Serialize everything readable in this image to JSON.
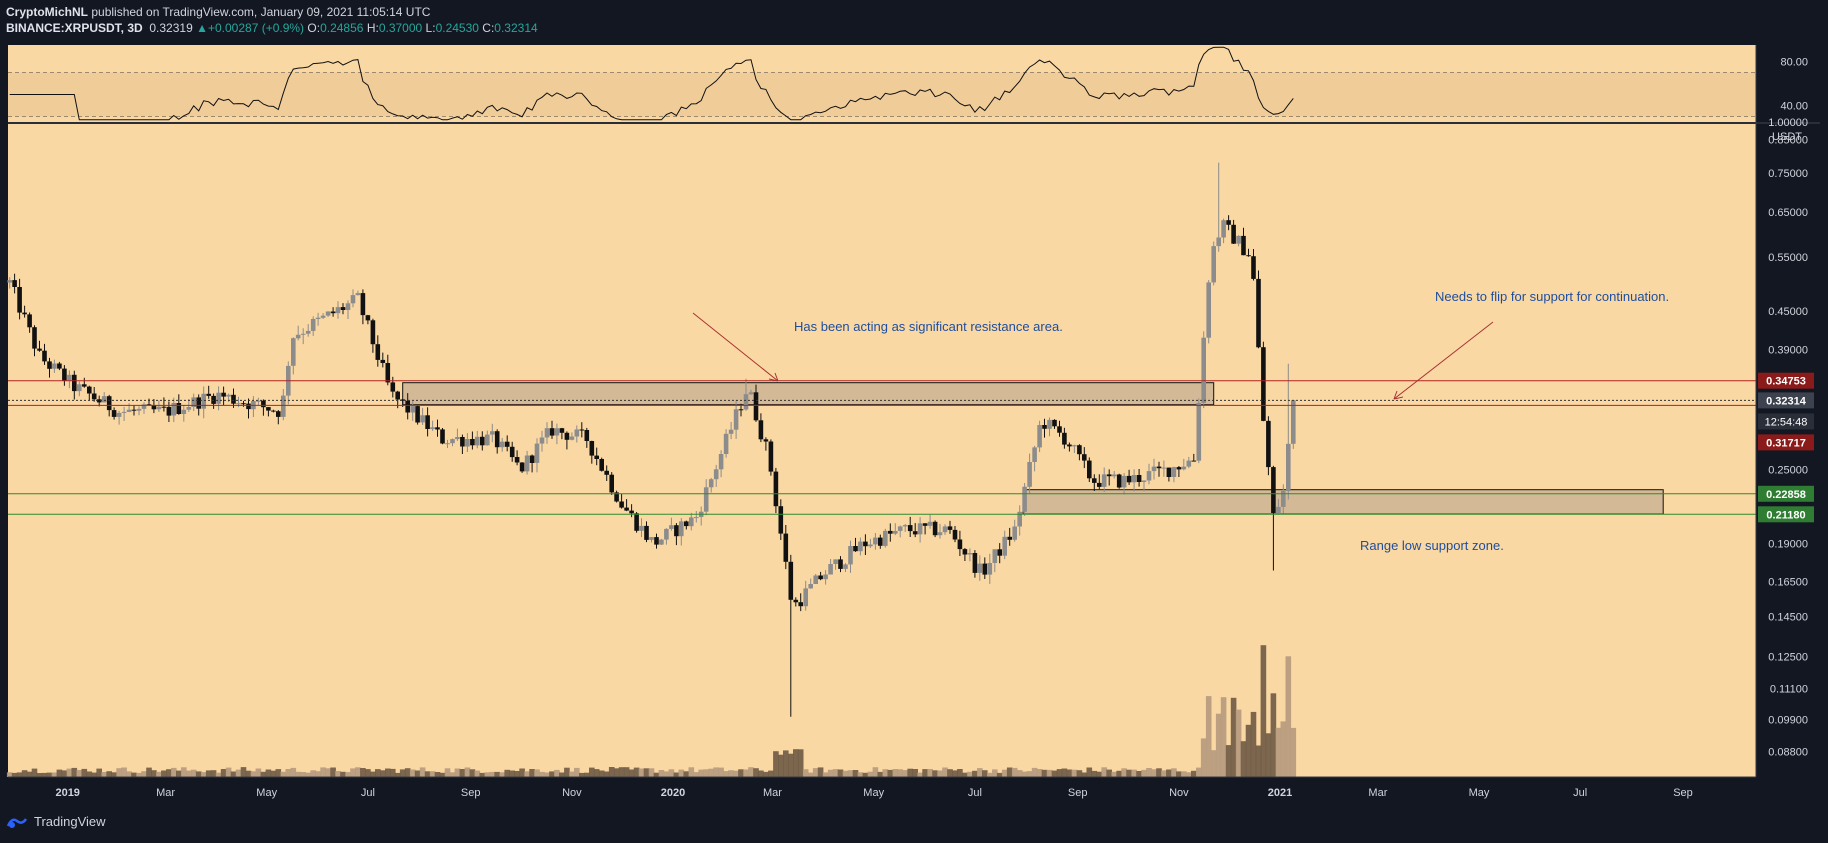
{
  "header": {
    "author": "CryptoMichNL",
    "published": "published on TradingView.com, January 09, 2021 11:05:14 UTC",
    "symbol": "BINANCE:XRPUSDT, 3D",
    "last": "0.32319",
    "change": "+0.00287 (+0.9%)",
    "o_label": "O:",
    "o": "0.24856",
    "h_label": "H:",
    "h": "0.37000",
    "l_label": "L:",
    "l": "0.24530",
    "c_label": "C:",
    "c": "0.32314"
  },
  "footer": {
    "brand": "TradingView"
  },
  "colors": {
    "bg": "#fad8a4",
    "frame": "#131722",
    "resistance": "#b22222",
    "support": "#2e8b2e",
    "annot": "#1f4e9c"
  },
  "chart_data": {
    "type": "candlestick",
    "symbol": "XRPUSDT",
    "interval": "3D",
    "y_scale": "log",
    "ylim": [
      0.08,
      0.9
    ],
    "currency": "USDT",
    "y_ticks": [
      "0.85000",
      "0.75000",
      "0.65000",
      "0.55000",
      "0.45000",
      "0.39000",
      "0.25000",
      "0.19000",
      "0.16500",
      "0.14500",
      "0.12500",
      "0.11100",
      "0.09900",
      "0.08800"
    ],
    "y_tick_values": [
      0.85,
      0.75,
      0.65,
      0.55,
      0.45,
      0.39,
      0.25,
      0.19,
      0.165,
      0.145,
      0.125,
      0.111,
      0.099,
      0.088
    ],
    "top_tick": "1.00000",
    "x_ticks": [
      "2019",
      "Mar",
      "May",
      "Jul",
      "Sep",
      "Nov",
      "2020",
      "Mar",
      "May",
      "Jul",
      "Sep",
      "Nov",
      "2021",
      "Mar",
      "May",
      "Jul",
      "Sep"
    ],
    "x_tick_dates": [
      "2019-01-01",
      "2019-03-01",
      "2019-05-01",
      "2019-07-01",
      "2019-09-01",
      "2019-11-01",
      "2020-01-01",
      "2020-03-01",
      "2020-05-01",
      "2020-07-01",
      "2020-09-01",
      "2020-11-01",
      "2021-01-01",
      "2021-03-01",
      "2021-05-01",
      "2021-07-01",
      "2021-09-01"
    ],
    "anchors": [
      [
        "2018-11-27",
        0.5
      ],
      [
        "2018-12-15",
        0.38
      ],
      [
        "2019-01-05",
        0.34
      ],
      [
        "2019-02-01",
        0.31
      ],
      [
        "2019-03-01",
        0.31
      ],
      [
        "2019-04-01",
        0.33
      ],
      [
        "2019-05-10",
        0.31
      ],
      [
        "2019-05-16",
        0.41
      ],
      [
        "2019-06-25",
        0.47
      ],
      [
        "2019-07-15",
        0.33
      ],
      [
        "2019-08-15",
        0.28
      ],
      [
        "2019-09-15",
        0.28
      ],
      [
        "2019-10-01",
        0.25
      ],
      [
        "2019-10-20",
        0.29
      ],
      [
        "2019-11-10",
        0.28
      ],
      [
        "2019-12-01",
        0.22
      ],
      [
        "2019-12-20",
        0.19
      ],
      [
        "2020-01-15",
        0.21
      ],
      [
        "2020-02-15",
        0.34
      ],
      [
        "2020-02-28",
        0.26
      ],
      [
        "2020-03-13",
        0.15
      ],
      [
        "2020-04-01",
        0.17
      ],
      [
        "2020-04-25",
        0.19
      ],
      [
        "2020-05-20",
        0.2
      ],
      [
        "2020-06-15",
        0.2
      ],
      [
        "2020-07-05",
        0.17
      ],
      [
        "2020-07-25",
        0.2
      ],
      [
        "2020-08-10",
        0.3
      ],
      [
        "2020-08-25",
        0.28
      ],
      [
        "2020-09-10",
        0.24
      ],
      [
        "2020-10-01",
        0.24
      ],
      [
        "2020-10-25",
        0.25
      ],
      [
        "2020-11-10",
        0.26
      ],
      [
        "2020-11-20",
        0.55
      ],
      [
        "2020-11-27",
        0.62
      ],
      [
        "2020-12-07",
        0.58
      ],
      [
        "2020-12-15",
        0.55
      ],
      [
        "2020-12-22",
        0.3
      ],
      [
        "2020-12-28",
        0.21
      ],
      [
        "2021-01-03",
        0.23
      ],
      [
        "2021-01-09",
        0.323
      ]
    ],
    "rsi": {
      "ylim": [
        25,
        95
      ],
      "ticks": [
        80,
        40
      ],
      "band": [
        30,
        70
      ]
    },
    "levels": [
      {
        "label": "0.34753",
        "value": 0.34753,
        "color": "#b22222",
        "kind": "resistance-top"
      },
      {
        "label": "0.31717",
        "value": 0.31717,
        "color": "#b22222",
        "kind": "resistance-bottom"
      },
      {
        "label": "0.22858",
        "value": 0.22858,
        "color": "#2e8b2e",
        "kind": "support-top"
      },
      {
        "label": "0.21180",
        "value": 0.2118,
        "color": "#2e8b2e",
        "kind": "support-bottom"
      }
    ],
    "last_price": {
      "label": "0.32314",
      "value": 0.32314,
      "timer": "12:54:48"
    },
    "zones": [
      {
        "start": "2019-07-22",
        "end": "2020-11-22",
        "top": 0.345,
        "bottom": 0.318
      },
      {
        "start": "2020-07-30",
        "end": "2021-08-20",
        "top": 0.232,
        "bottom": 0.212
      }
    ],
    "annotations": [
      {
        "text": "Has been acting as significant resistance area."
      },
      {
        "text": "Needs to flip for support for continuation."
      },
      {
        "text": "Range low support zone."
      }
    ]
  }
}
